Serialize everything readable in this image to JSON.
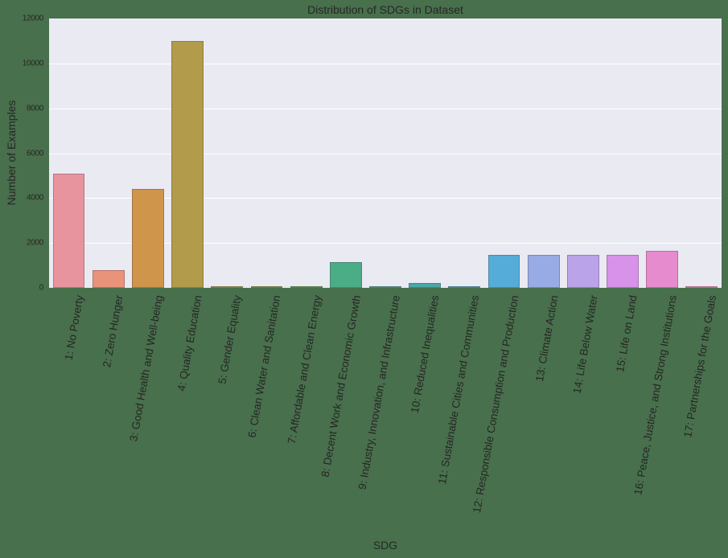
{
  "chart_data": {
    "type": "bar",
    "title": "Distribution of SDGs in Dataset",
    "xlabel": "SDG",
    "ylabel": "Number of Examples",
    "ylim": [
      0,
      12000
    ],
    "yticks": [
      0,
      2000,
      4000,
      6000,
      8000,
      10000,
      12000
    ],
    "grid": true,
    "legend": null,
    "categories": [
      "1: No Poverty",
      "2: Zero Hunger",
      "3: Good Health and Well-being",
      "4: Quality Education",
      "5: Gender Equality",
      "6: Clean Water and Sanitation",
      "7: Affordable and Clean Energy",
      "8: Decent Work and Economic Growth",
      "9: Industry, Innovation, and Infrastructure",
      "10: Reduced Inequalities",
      "11: Sustainable Cities and Communities",
      "12: Responsible Consumption and Production",
      "13: Climate Action",
      "14: Life Below Water",
      "15: Life on Land",
      "16: Peace, Justice, and Strong Institutions",
      "17: Partnerships for the Goals"
    ],
    "values": [
      5100,
      800,
      4400,
      11000,
      60,
      60,
      30,
      1150,
      60,
      220,
      30,
      1470,
      1470,
      1470,
      1470,
      1650,
      60
    ],
    "colors": [
      "#e8949f",
      "#e8937a",
      "#cf954b",
      "#b29b4a",
      "#9c9d45",
      "#7ea046",
      "#5ba24e",
      "#4aad85",
      "#4aa897",
      "#4aa8a8",
      "#4aa6b9",
      "#56acd8",
      "#98abe5",
      "#bba3ea",
      "#d892ea",
      "#e68bce",
      "#e98fae"
    ]
  }
}
